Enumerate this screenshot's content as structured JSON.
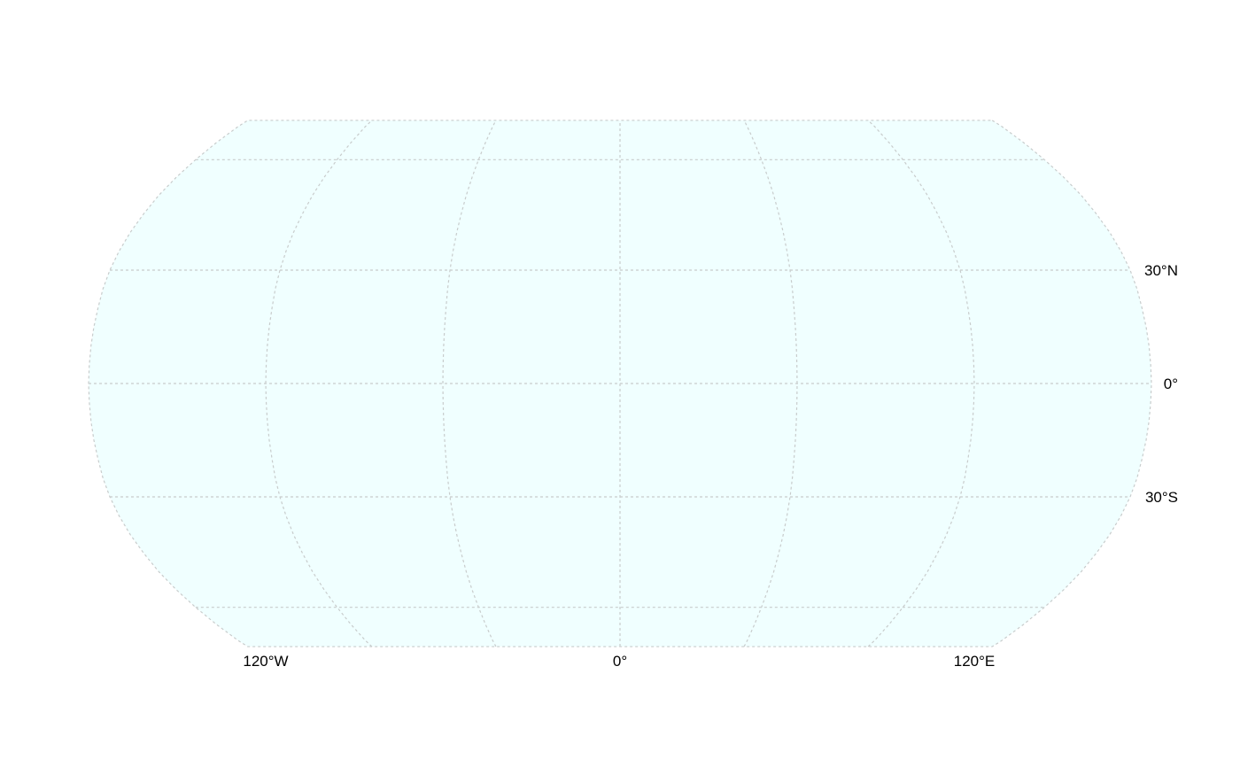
{
  "map": {
    "projection": "Robinson",
    "ocean_color": "#F0FFFF",
    "graticule_color": "#C8CCCC",
    "graticule": {
      "meridians_deg": [
        -180,
        -120,
        -60,
        0,
        60,
        120,
        180
      ],
      "parallels_deg": [
        -60,
        -30,
        0,
        30,
        60
      ]
    },
    "longitude_labels": [
      {
        "lon": -120,
        "text": "120°W"
      },
      {
        "lon": 0,
        "text": "0°"
      },
      {
        "lon": 120,
        "text": "120°E"
      }
    ],
    "latitude_labels": [
      {
        "lat": 30,
        "text": "30°N"
      },
      {
        "lat": 0,
        "text": "0°"
      },
      {
        "lat": -30,
        "text": "30°S"
      }
    ]
  }
}
